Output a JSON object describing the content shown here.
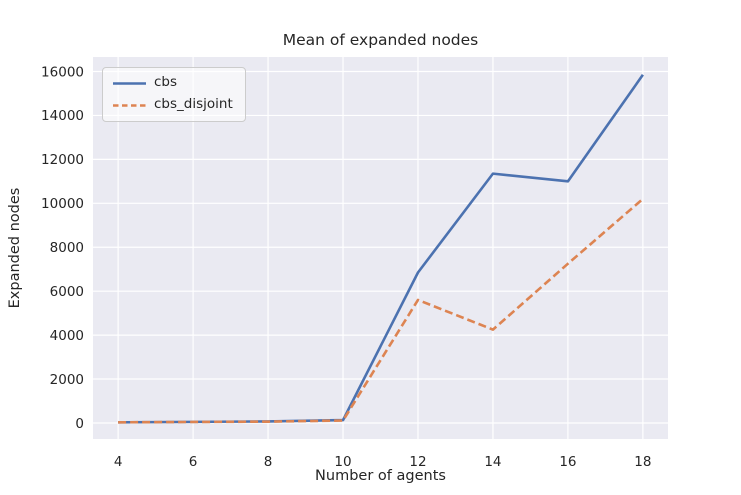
{
  "chart_data": {
    "type": "line",
    "title": "Mean of expanded nodes",
    "xlabel": "Number of agents",
    "ylabel": "Expanded nodes",
    "x": [
      4,
      6,
      8,
      10,
      12,
      14,
      16,
      18
    ],
    "series": [
      {
        "name": "cbs",
        "color": "#4c72b0",
        "style": "solid",
        "values": [
          30,
          50,
          70,
          130,
          6850,
          11350,
          11000,
          15850
        ]
      },
      {
        "name": "cbs_disjoint",
        "color": "#dd8452",
        "style": "dashed",
        "values": [
          30,
          45,
          60,
          110,
          5600,
          4250,
          7250,
          10200
        ]
      }
    ],
    "xticks": [
      4,
      6,
      8,
      10,
      12,
      14,
      16,
      18
    ],
    "yticks": [
      0,
      2000,
      4000,
      6000,
      8000,
      10000,
      12000,
      14000,
      16000
    ],
    "xlim": [
      3.33,
      18.67
    ],
    "ylim": [
      -730,
      16660
    ],
    "grid": true,
    "legend_position": "upper left",
    "colors": {
      "plot_bg": "#eaeaf2",
      "grid": "#ffffff",
      "text": "#262626",
      "legend_border": "#cccccc"
    }
  }
}
